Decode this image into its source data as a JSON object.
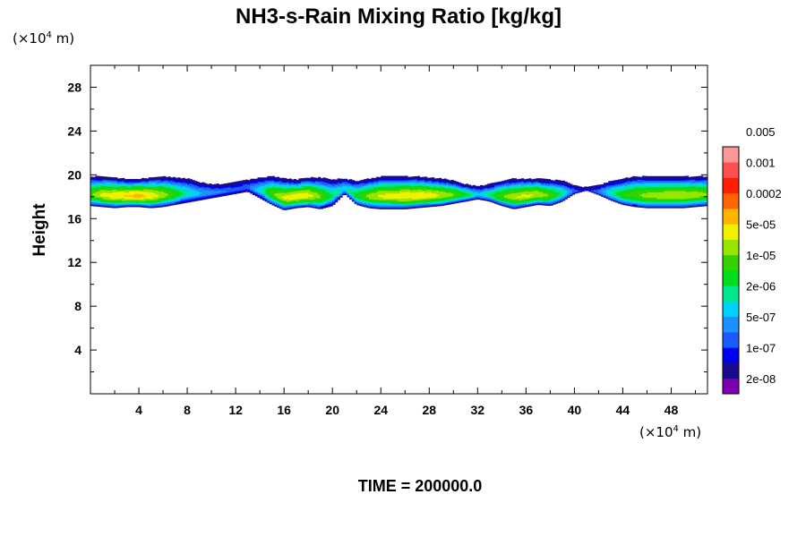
{
  "chart_data": {
    "type": "heatmap",
    "title": "NH3-s-Rain Mixing Ratio [kg/kg]",
    "ylabel": "Height",
    "x_unit": {
      "prefix": "(×10",
      "exp": "4",
      "suffix": " m)"
    },
    "y_unit": {
      "prefix": "(×10",
      "exp": "4",
      "suffix": " m)"
    },
    "xlim": [
      0,
      51
    ],
    "ylim": [
      0,
      30
    ],
    "x_ticks": [
      4,
      8,
      12,
      16,
      20,
      24,
      28,
      32,
      36,
      40,
      44,
      48
    ],
    "y_ticks": [
      4,
      8,
      12,
      16,
      20,
      24,
      28
    ],
    "x_tick_labels": [
      "4",
      "8",
      "12",
      "16",
      "20",
      "24",
      "28",
      "32",
      "36",
      "40",
      "44",
      "48"
    ],
    "y_tick_labels": [
      "4",
      "8",
      "12",
      "16",
      "20",
      "24",
      "28"
    ],
    "colorbar": {
      "labels": [
        "2e-08",
        "1e-07",
        "5e-07",
        "2e-06",
        "1e-05",
        "5e-05",
        "0.0002",
        "0.001",
        "0.005"
      ],
      "colors": [
        "#7a00b0",
        "#1a0a8c",
        "#0000f0",
        "#1a5aff",
        "#1e90ff",
        "#00d2ff",
        "#00e68c",
        "#00dc1e",
        "#32d200",
        "#96e600",
        "#f0f000",
        "#ffb400",
        "#ff6400",
        "#ff1e00",
        "#ff5050",
        "#ff9696"
      ]
    },
    "cloud_layer": {
      "base": [
        17.2,
        17.1,
        17.0,
        17.1,
        17.1,
        17.0,
        17.1,
        17.3,
        17.5,
        17.7,
        17.9,
        18.1,
        18.3,
        18.5,
        17.9,
        17.3,
        16.8,
        17.0,
        17.1,
        16.9,
        17.2,
        18.3,
        17.3,
        17.0,
        16.9,
        16.9,
        16.9,
        17.0,
        17.1,
        17.2,
        17.4,
        17.6,
        17.8,
        17.6,
        17.2,
        16.9,
        17.1,
        17.3,
        17.2,
        17.6,
        18.3,
        18.6,
        18.2,
        17.7,
        17.3,
        17.1,
        17.0,
        17.0,
        17.0,
        17.0,
        17.1,
        17.2
      ],
      "top": [
        19.8,
        19.8,
        19.7,
        19.6,
        19.6,
        19.7,
        19.8,
        19.7,
        19.6,
        19.3,
        19.1,
        19.1,
        19.3,
        19.5,
        19.7,
        19.8,
        19.6,
        19.5,
        19.7,
        19.7,
        19.5,
        19.6,
        19.4,
        19.6,
        19.8,
        19.8,
        19.8,
        19.8,
        19.7,
        19.6,
        19.4,
        19.1,
        18.9,
        19.1,
        19.4,
        19.6,
        19.6,
        19.6,
        19.5,
        19.4,
        19.0,
        18.8,
        19.0,
        19.4,
        19.6,
        19.8,
        19.8,
        19.8,
        19.8,
        19.8,
        19.8,
        19.8
      ],
      "intensity": [
        0.55,
        0.66,
        0.7,
        0.72,
        0.74,
        0.7,
        0.62,
        0.5,
        0.38,
        0.3,
        0.26,
        0.22,
        0.18,
        0.2,
        0.34,
        0.55,
        0.66,
        0.7,
        0.68,
        0.58,
        0.42,
        0.34,
        0.48,
        0.6,
        0.66,
        0.68,
        0.7,
        0.7,
        0.68,
        0.64,
        0.58,
        0.48,
        0.32,
        0.42,
        0.56,
        0.64,
        0.66,
        0.64,
        0.56,
        0.4,
        0.18,
        0.1,
        0.22,
        0.38,
        0.5,
        0.56,
        0.6,
        0.62,
        0.64,
        0.64,
        0.62,
        0.58
      ]
    }
  },
  "footer": {
    "time_label": "TIME = 200000.0"
  }
}
